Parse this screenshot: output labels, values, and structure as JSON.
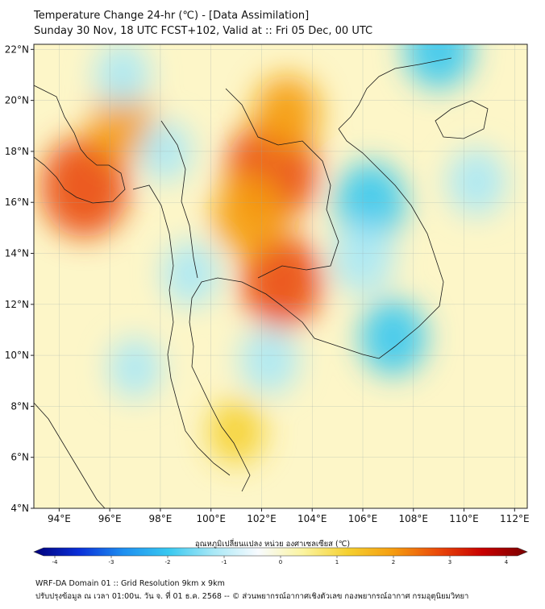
{
  "header": {
    "title_line1": "Temperature Change 24-hr (℃) - [Data Assimilation]",
    "title_line2": "Sunday 30 Nov, 18 UTC FCST+102, Valid at :: Fri 05 Dec, 00 UTC"
  },
  "map": {
    "lon_ticks": [
      "94°E",
      "96°E",
      "98°E",
      "100°E",
      "102°E",
      "104°E",
      "106°E",
      "108°E",
      "110°E",
      "112°E"
    ],
    "lat_ticks": [
      "22°N",
      "20°N",
      "18°N",
      "16°N",
      "14°N",
      "12°N",
      "10°N",
      "8°N",
      "6°N",
      "4°N"
    ],
    "lon_values": [
      94,
      96,
      98,
      100,
      102,
      104,
      106,
      108,
      110,
      112
    ],
    "lat_values": [
      22,
      20,
      18,
      16,
      14,
      12,
      10,
      8,
      6,
      4
    ],
    "extent": {
      "lon_min": 93,
      "lon_max": 112.5,
      "lat_min": 4,
      "lat_max": 22.2
    },
    "hotspots": [
      {
        "lon": 102.4,
        "lat": 17.2,
        "value": 2.9
      },
      {
        "lon": 95.0,
        "lat": 16.6,
        "value": 2.7
      },
      {
        "lon": 102.8,
        "lat": 12.9,
        "value": 2.4
      },
      {
        "lon": 101.5,
        "lat": 15.5,
        "value": 1.9
      },
      {
        "lon": 103.0,
        "lat": 19.5,
        "value": 1.6
      },
      {
        "lon": 96.5,
        "lat": 19.0,
        "value": 1.5
      },
      {
        "lon": 101.0,
        "lat": 7.0,
        "value": 1.1
      },
      {
        "lon": 106.3,
        "lat": 16.0,
        "value": -1.8
      },
      {
        "lon": 106.0,
        "lat": 13.8,
        "value": -1.4
      },
      {
        "lon": 107.2,
        "lat": 10.7,
        "value": -1.6
      },
      {
        "lon": 102.3,
        "lat": 9.8,
        "value": -1.2
      },
      {
        "lon": 99.2,
        "lat": 13.2,
        "value": -1.1
      },
      {
        "lon": 109.0,
        "lat": 22.0,
        "value": -1.7
      },
      {
        "lon": 110.5,
        "lat": 16.8,
        "value": -1.2
      },
      {
        "lon": 98.2,
        "lat": 18.0,
        "value": -0.9
      },
      {
        "lon": 97.0,
        "lat": 9.5,
        "value": -0.9
      },
      {
        "lon": 96.5,
        "lat": 21.0,
        "value": -1.0
      }
    ]
  },
  "colorbar": {
    "label": "อุณหภูมิเปลี่ยนแปลง หน่วย องศาเซลเซียส (℃)",
    "ticks": [
      "-4",
      "-3",
      "-2",
      "-1",
      "0",
      "1",
      "2",
      "3",
      "4"
    ],
    "min": -4,
    "max": 4,
    "stops": [
      "#00007a",
      "#0a2fd8",
      "#1e8ff0",
      "#38c8f0",
      "#a8e8f6",
      "#f8fbff",
      "#fbf4a0",
      "#f5d030",
      "#f59d10",
      "#ea4a0a",
      "#c80000",
      "#7a0000"
    ]
  },
  "footer": {
    "line1": "WRF-DA Domain 01 :: Grid Resolution 9km x 9km",
    "line2": "ปรับปรุงข้อมูล ณ เวลา 01:00น. วัน จ. ที่ 01 ธ.ค. 2568 -- © ส่วนพยากรณ์อากาศเชิงตัวเลข กองพยากรณ์อากาศ กรมอุตุนิยมวิทยา"
  }
}
